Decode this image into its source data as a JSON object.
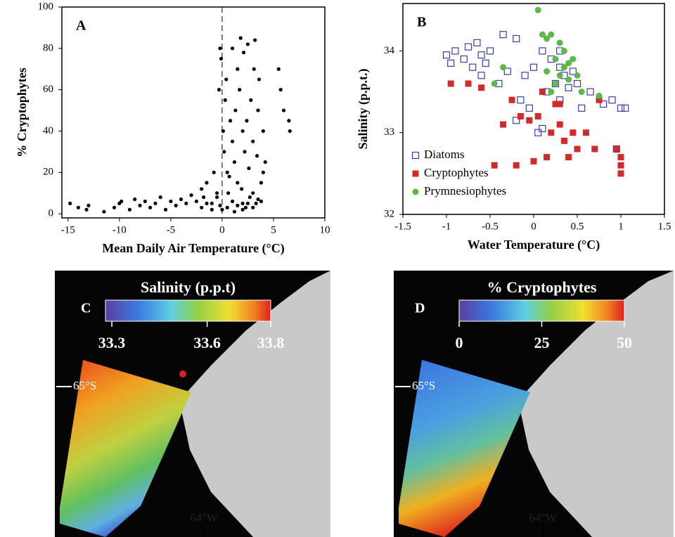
{
  "chart_data": [
    {
      "type": "scatter",
      "label": "A",
      "xlabel": "Mean Daily Air Temperature (°C)",
      "ylabel": "% Cryptophytes",
      "xlim": [
        -15.6,
        10
      ],
      "ylim": [
        -2,
        100
      ],
      "xticks": [
        -15,
        -10,
        -5,
        0,
        5,
        10
      ],
      "yticks": [
        0,
        20,
        40,
        60,
        80,
        100
      ],
      "vline": 0,
      "color": "#000000",
      "x": [
        -14.8,
        -14,
        -13.2,
        -13,
        -11.5,
        -10.5,
        -10,
        -9.8,
        -9,
        -8.5,
        -8,
        -7.5,
        -7,
        -6.5,
        -6,
        -5.5,
        -5,
        -4.5,
        -4,
        -3.5,
        -3,
        -2.5,
        -2,
        -1.8,
        -1.5,
        -1,
        -0.8,
        -0.5,
        -0.3,
        -0.2,
        -0.1,
        0.1,
        0.2,
        0.3,
        0.4,
        0.5,
        0.6,
        0.8,
        1,
        1,
        1.2,
        1.3,
        1.5,
        1.5,
        1.7,
        1.8,
        2,
        2,
        2.1,
        2.2,
        2.4,
        2.5,
        2.6,
        2.8,
        3,
        3,
        3.1,
        3.2,
        3.4,
        3.5,
        3.6,
        3.8,
        4,
        4,
        4.2,
        5.5,
        5.7,
        6,
        6.5,
        6.6,
        -2,
        -1.5,
        -1,
        -0.5,
        0.5,
        1,
        1.5,
        2,
        2.5,
        3,
        3.5,
        0,
        -0.2,
        1.2,
        2.3,
        3.3,
        0.7,
        1.9,
        2.7,
        3.8
      ],
      "values": [
        5,
        3,
        2,
        4,
        1,
        3,
        5,
        6,
        2,
        7,
        4,
        6,
        3,
        5,
        8,
        2,
        6,
        4,
        7,
        5,
        9,
        6,
        12,
        8,
        15,
        5,
        20,
        10,
        60,
        80,
        75,
        40,
        30,
        55,
        65,
        20,
        10,
        45,
        35,
        80,
        25,
        50,
        70,
        15,
        60,
        85,
        40,
        5,
        78,
        30,
        45,
        82,
        22,
        55,
        35,
        10,
        70,
        84,
        28,
        50,
        65,
        15,
        40,
        20,
        25,
        70,
        60,
        50,
        45,
        40,
        3,
        5,
        2,
        8,
        3,
        6,
        4,
        2,
        5,
        3,
        7,
        2,
        4,
        1,
        3,
        5,
        18,
        12,
        8,
        6
      ]
    },
    {
      "type": "scatter",
      "label": "B",
      "xlabel": "Water Temperature (°C)",
      "ylabel": "Salinity (p.p.t.)",
      "xlim": [
        -1.5,
        1.5
      ],
      "ylim": [
        32,
        34.58
      ],
      "xticks": [
        -1.5,
        -1,
        -0.5,
        0,
        0.5,
        1,
        1.5
      ],
      "yticks": [
        32,
        33,
        34
      ],
      "legend": "lower left",
      "series": [
        {
          "name": "Diatoms",
          "color": "#3b3bb0",
          "marker": "open-square",
          "x": [
            -1,
            -0.95,
            -0.9,
            -0.8,
            -0.75,
            -0.7,
            -0.65,
            -0.6,
            -0.6,
            -0.55,
            -0.5,
            -0.4,
            -0.35,
            -0.3,
            -0.2,
            -0.15,
            -0.1,
            -0.05,
            0,
            0.05,
            0.1,
            0.15,
            0.2,
            0.25,
            0.3,
            0.3,
            0.35,
            0.4,
            0.45,
            0.5,
            0.55,
            0.65,
            0.8,
            0.9,
            1,
            1.05,
            0.95,
            -0.2,
            0.1,
            0.3
          ],
          "values": [
            33.95,
            33.85,
            34.0,
            33.9,
            34.05,
            33.8,
            34.1,
            33.95,
            33.7,
            33.85,
            34.0,
            33.6,
            34.2,
            33.75,
            34.15,
            33.4,
            33.7,
            33.3,
            33.8,
            33.0,
            34.0,
            33.5,
            33.9,
            33.6,
            33.8,
            34.0,
            33.7,
            33.55,
            33.75,
            33.6,
            33.3,
            33.5,
            33.35,
            33.4,
            33.3,
            33.3,
            32.8,
            33.15,
            33.05,
            33.4
          ]
        },
        {
          "name": "Cryptophytes",
          "color": "#d12a2a",
          "marker": "square",
          "x": [
            -0.95,
            -0.75,
            -0.6,
            -0.35,
            -0.25,
            -0.2,
            -0.15,
            0,
            0.05,
            0.1,
            0.15,
            0.2,
            0.25,
            0.3,
            0.35,
            0.4,
            0.45,
            0.5,
            0.6,
            0.7,
            0.95,
            1,
            1,
            1,
            0.75,
            -0.05,
            -0.45,
            0.3
          ],
          "values": [
            33.6,
            33.6,
            33.55,
            33.1,
            33.4,
            32.6,
            33.2,
            32.65,
            33.2,
            33.5,
            32.7,
            33.0,
            33.35,
            33.1,
            32.9,
            32.7,
            33.0,
            32.8,
            33.0,
            32.8,
            32.8,
            32.6,
            32.5,
            32.7,
            33.4,
            33.15,
            32.6,
            33.35
          ]
        },
        {
          "name": "Prymnesiophytes",
          "color": "#5cb848",
          "marker": "circle",
          "x": [
            -0.35,
            -0.45,
            0.05,
            0.1,
            0.15,
            0.2,
            0.25,
            0.3,
            0.3,
            0.35,
            0.4,
            0.45,
            0.5,
            0.55,
            0.15,
            0.25,
            0.4,
            0.75,
            0.2,
            0.35
          ],
          "values": [
            33.8,
            33.6,
            34.5,
            34.2,
            34.15,
            34.2,
            33.9,
            34.1,
            33.7,
            33.8,
            33.65,
            33.9,
            33.7,
            33.5,
            33.75,
            33.6,
            33.85,
            33.45,
            33.5,
            34.0
          ]
        }
      ]
    },
    {
      "type": "map",
      "label": "C",
      "title": "Salinity (p.p.t)",
      "colorbar_lim": [
        33.28,
        33.8
      ],
      "colorbar_ticks": [
        33.3,
        33.6,
        33.8
      ],
      "annotations": [
        "65°S",
        "64°W"
      ]
    },
    {
      "type": "map",
      "label": "D",
      "title": "% Cryptophytes",
      "colorbar_lim": [
        0,
        50
      ],
      "colorbar_ticks": [
        0,
        25,
        50
      ],
      "annotations": [
        "65°S",
        "64°W"
      ]
    }
  ]
}
